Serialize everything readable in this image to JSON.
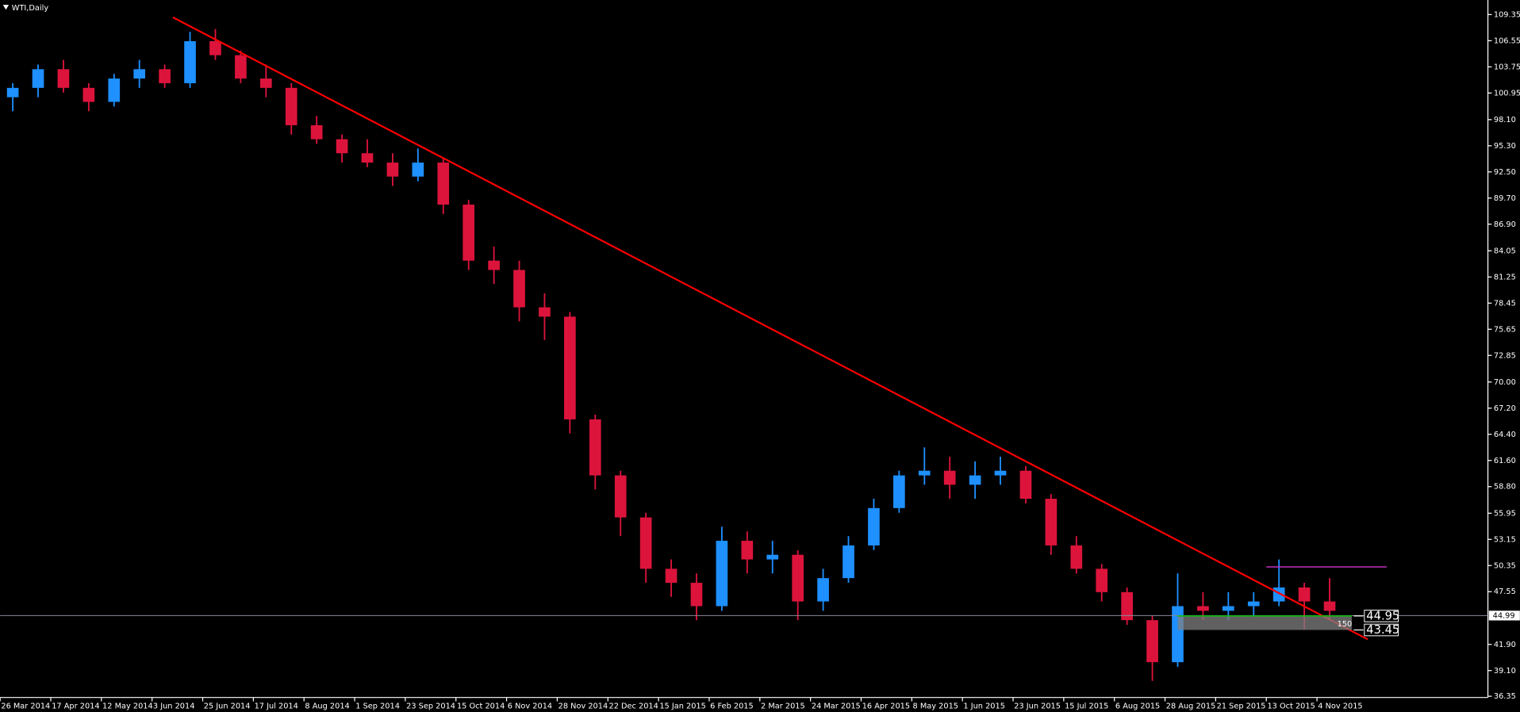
{
  "chart_data": {
    "type": "candlestick",
    "title": "WTI,Daily",
    "up_color": "#1e90ff",
    "down_color": "#dc143c",
    "grid": false,
    "xlim": [
      0,
      470
    ],
    "ylim": [
      36.22,
      110.91
    ],
    "xticks": [
      {
        "value": 0,
        "label": "26 Mar 2014"
      },
      {
        "value": 16,
        "label": "17 Apr 2014"
      },
      {
        "value": 32,
        "label": "12 May 2014"
      },
      {
        "value": 48,
        "label": "3 Jun 2014"
      },
      {
        "value": 64,
        "label": "25 Jun 2014"
      },
      {
        "value": 80,
        "label": "17 Jul 2014"
      },
      {
        "value": 96,
        "label": "8 Aug 2014"
      },
      {
        "value": 112,
        "label": "1 Sep 2014"
      },
      {
        "value": 128,
        "label": "23 Sep 2014"
      },
      {
        "value": 144,
        "label": "15 Oct 2014"
      },
      {
        "value": 160,
        "label": "6 Nov 2014"
      },
      {
        "value": 176,
        "label": "28 Nov 2014"
      },
      {
        "value": 192,
        "label": "22 Dec 2014"
      },
      {
        "value": 208,
        "label": "15 Jan 2015"
      },
      {
        "value": 224,
        "label": "6 Feb 2015"
      },
      {
        "value": 240,
        "label": "2 Mar 2015"
      },
      {
        "value": 256,
        "label": "24 Mar 2015"
      },
      {
        "value": 272,
        "label": "16 Apr 2015"
      },
      {
        "value": 288,
        "label": "8 May 2015"
      },
      {
        "value": 304,
        "label": "1 Jun 2015"
      },
      {
        "value": 320,
        "label": "23 Jun 2015"
      },
      {
        "value": 336,
        "label": "15 Jul 2015"
      },
      {
        "value": 352,
        "label": "6 Aug 2015"
      },
      {
        "value": 368,
        "label": "28 Aug 2015"
      },
      {
        "value": 384,
        "label": "21 Sep 2015"
      },
      {
        "value": 400,
        "label": "13 Oct 2015"
      },
      {
        "value": 416,
        "label": "4 Nov 2015"
      }
    ],
    "yticks": [
      109.35,
      106.55,
      103.75,
      100.95,
      {
        "value": 98.1,
        "label": "98.10"
      },
      {
        "value": 95.3,
        "label": "95.30"
      },
      {
        "value": 92.5,
        "label": "92.50"
      },
      {
        "value": 89.7,
        "label": "89.70"
      },
      {
        "value": 86.9,
        "label": "86.90"
      },
      84.05,
      81.25,
      78.45,
      75.65,
      72.85,
      {
        "value": 70,
        "label": "70.00"
      },
      {
        "value": 67.2,
        "label": "67.20"
      },
      {
        "value": 64.4,
        "label": "64.40"
      },
      {
        "value": 61.6,
        "label": "61.60"
      },
      {
        "value": 58.8,
        "label": "58.80"
      },
      55.95,
      53.15,
      50.35,
      47.55,
      {
        "value": 41.9,
        "label": "41.90"
      },
      {
        "value": 39.1,
        "label": "39.10"
      },
      36.35
    ],
    "x": [
      4,
      12,
      20,
      28,
      36,
      44,
      52,
      60,
      68,
      76,
      84,
      92,
      100,
      108,
      116,
      124,
      132,
      140,
      148,
      156,
      164,
      172,
      180,
      188,
      196,
      204,
      212,
      220,
      228,
      236,
      244,
      252,
      260,
      268,
      276,
      284,
      292,
      300,
      308,
      316,
      324,
      332,
      340,
      348,
      356,
      364,
      372,
      380,
      388,
      396,
      404,
      412,
      420
    ],
    "open": [
      100.5,
      101.5,
      103.5,
      101.5,
      100,
      102.5,
      103.5,
      102,
      106.5,
      105,
      102.5,
      101.5,
      97.5,
      96,
      94.5,
      93.5,
      92,
      93.5,
      89,
      83,
      82,
      78,
      77,
      66,
      60,
      55.5,
      50,
      48.5,
      46,
      53,
      51,
      51.5,
      46.5,
      49,
      52.5,
      56.5,
      60,
      60.5,
      59,
      60,
      60.5,
      57.5,
      52.5,
      50,
      47.5,
      44.5,
      40,
      46,
      45.5,
      46,
      46.5,
      48,
      46.5
    ],
    "high": [
      102,
      104,
      104.5,
      102,
      103,
      104.5,
      104,
      107.5,
      107.8,
      105.5,
      104,
      102,
      98.5,
      96.5,
      96,
      94.5,
      95,
      94,
      89.5,
      84.5,
      83,
      79.5,
      77.5,
      66.5,
      60.5,
      56,
      51,
      49.5,
      54.5,
      54,
      53,
      52,
      50,
      53.5,
      57.5,
      60.5,
      63,
      62,
      61.5,
      62,
      61,
      58,
      53.5,
      50.5,
      48,
      45,
      49.5,
      47.5,
      47.5,
      47.5,
      51,
      48.5,
      49
    ],
    "low": [
      99,
      100.5,
      101,
      99,
      99.5,
      101.5,
      101.5,
      101.5,
      104.5,
      102,
      100.5,
      96.5,
      95.5,
      93.5,
      93,
      91,
      91.5,
      88,
      82,
      80.5,
      76.5,
      74.5,
      64.5,
      58.5,
      53.5,
      48.5,
      47,
      44.5,
      45.5,
      49.5,
      49.5,
      44.5,
      45.5,
      48.5,
      52,
      56,
      59,
      57.5,
      57.5,
      59,
      57,
      51.5,
      49.5,
      46.5,
      44,
      38,
      39.5,
      44.5,
      44.5,
      45,
      46,
      43.5,
      44.5
    ],
    "close": [
      101.5,
      103.5,
      101.5,
      100,
      102.5,
      103.5,
      102,
      106.5,
      105,
      102.5,
      101.5,
      97.5,
      96,
      94.5,
      93.5,
      92,
      93.5,
      89,
      83,
      82,
      78,
      77,
      66,
      60,
      55.5,
      50,
      48.5,
      46,
      53,
      51,
      51.5,
      46.5,
      49,
      52.5,
      56.5,
      60,
      60.5,
      59,
      60,
      60.5,
      57.5,
      52.5,
      50,
      47.5,
      44.5,
      40,
      46,
      45.5,
      46,
      46.5,
      48,
      46.5,
      45.5
    ],
    "current_price": 44.99,
    "trendline": {
      "x": [
        54.6,
        432
      ],
      "y": [
        109.05,
        42.45
      ],
      "color": "#ff0000"
    },
    "resistance": {
      "x": [
        400,
        438
      ],
      "value": 50.2,
      "color": "#c030c0"
    },
    "zone": {
      "x": [
        372,
        427
      ],
      "top": 44.95,
      "bottom": 43.45,
      "distance": 150,
      "color": "#808080",
      "line_color": "#00c000"
    }
  }
}
